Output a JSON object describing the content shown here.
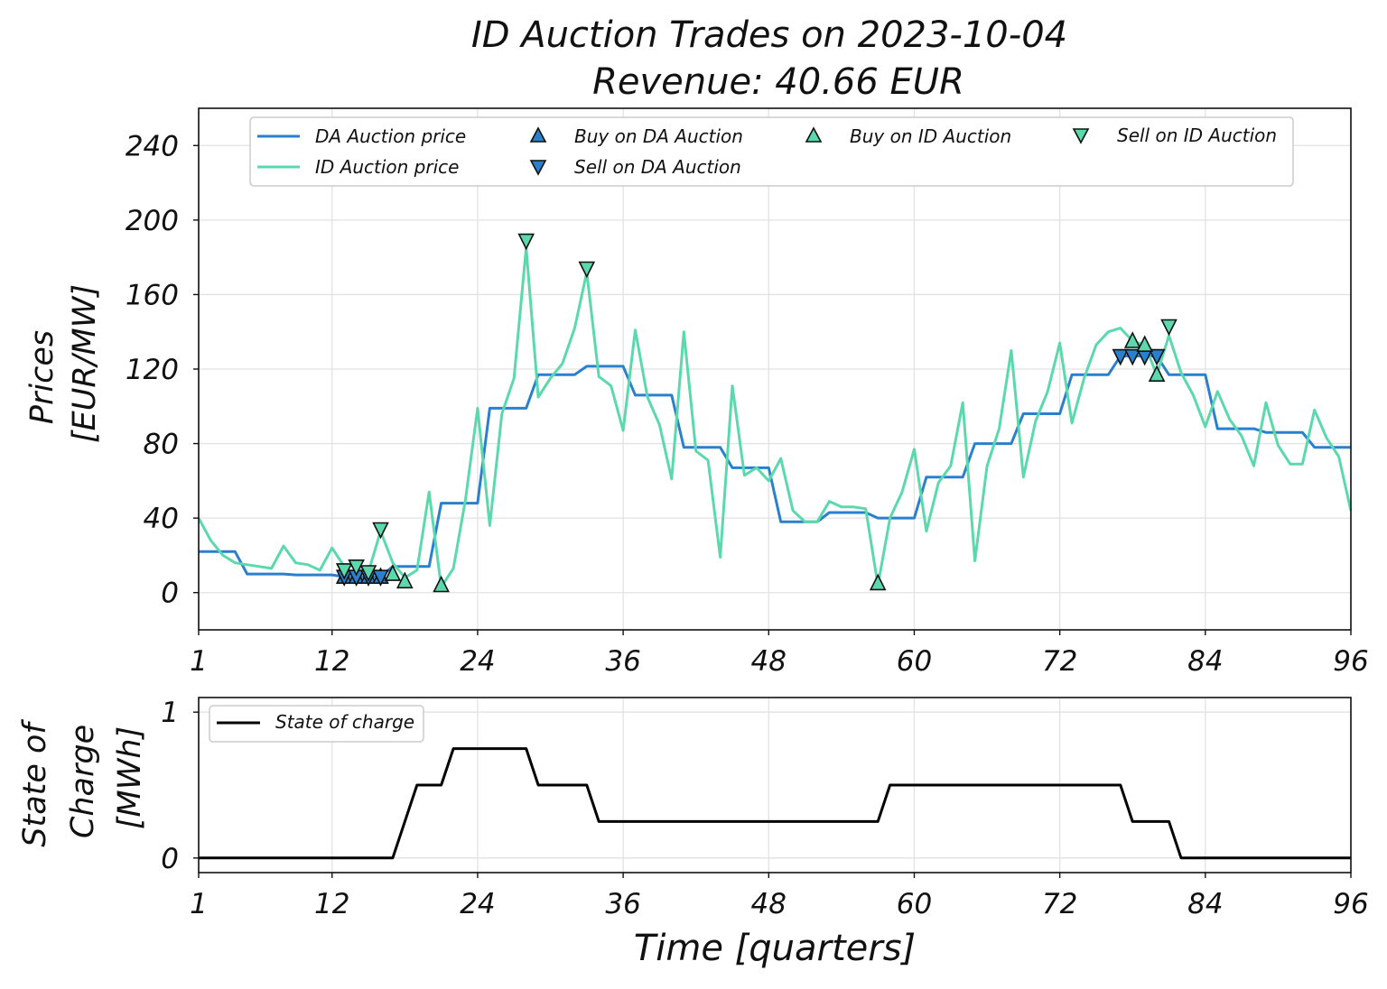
{
  "title_line1": "ID Auction Trades on 2023-10-04",
  "title_line2": "Revenue: 40.66 EUR",
  "colors": {
    "da": "#2a80cc",
    "id": "#5bd9ad",
    "soc": "#000000"
  },
  "chart_data": [
    {
      "type": "line",
      "ylabel_line1": "Prices",
      "ylabel_line2": "[EUR/MW]",
      "xlim": [
        1,
        96
      ],
      "ylim": [
        -20,
        260
      ],
      "xticks": [
        1,
        12,
        24,
        36,
        48,
        60,
        72,
        84,
        96
      ],
      "yticks": [
        0,
        40,
        80,
        120,
        160,
        200,
        240
      ],
      "grid": true,
      "legend_position": "top",
      "series": [
        {
          "name": "DA Auction price",
          "style": "step",
          "x": [
            1,
            4,
            5,
            8,
            9,
            12,
            13,
            16,
            17,
            20,
            21,
            24,
            25,
            28,
            29,
            32,
            33,
            36,
            37,
            40,
            41,
            44,
            45,
            48,
            49,
            52,
            53,
            56,
            57,
            60,
            61,
            64,
            65,
            68,
            69,
            72,
            73,
            76,
            77,
            80,
            81,
            84,
            85,
            88,
            89,
            92,
            93,
            96
          ],
          "y": [
            22,
            22,
            10,
            10,
            9.5,
            9.5,
            8.5,
            8.5,
            14,
            14,
            48,
            48,
            99,
            99,
            117,
            117,
            121.5,
            121.5,
            106,
            106,
            78,
            78,
            67,
            67,
            38,
            38,
            43,
            43,
            40,
            40,
            62,
            62,
            80,
            80,
            96,
            96,
            117,
            117,
            127,
            127,
            117,
            117,
            88,
            88,
            86,
            86,
            78,
            78
          ]
        },
        {
          "name": "ID Auction price",
          "x": [
            1,
            2,
            3,
            4,
            5,
            6,
            7,
            8,
            9,
            10,
            11,
            12,
            13,
            14,
            15,
            16,
            17,
            18,
            19,
            20,
            21,
            22,
            23,
            24,
            25,
            26,
            27,
            28,
            29,
            30,
            31,
            32,
            33,
            34,
            35,
            36,
            37,
            38,
            39,
            40,
            41,
            42,
            43,
            44,
            45,
            46,
            47,
            48,
            49,
            50,
            51,
            52,
            53,
            54,
            55,
            56,
            57,
            58,
            59,
            60,
            61,
            62,
            63,
            64,
            65,
            66,
            67,
            68,
            69,
            70,
            71,
            72,
            73,
            74,
            75,
            76,
            77,
            78,
            79,
            80,
            81,
            82,
            83,
            84,
            85,
            86,
            87,
            88,
            89,
            90,
            91,
            92,
            93,
            94,
            95,
            96
          ],
          "y": [
            40,
            28,
            20,
            16,
            15,
            14,
            13,
            25,
            16,
            15,
            12,
            24,
            14,
            15,
            11,
            33,
            16,
            8,
            12,
            54,
            3,
            13,
            50,
            99,
            36,
            96,
            115,
            185,
            105,
            115,
            123,
            142,
            172,
            116,
            111,
            87,
            141,
            105,
            90,
            61,
            140,
            76,
            71,
            19,
            111,
            63,
            67,
            60,
            72,
            44,
            38,
            38,
            49,
            46,
            46,
            45,
            4,
            40,
            54,
            77,
            33,
            59,
            68,
            102,
            17,
            68,
            88,
            130,
            62,
            92,
            108,
            134,
            91,
            115,
            133,
            140,
            142,
            135,
            133,
            117,
            138,
            118,
            106,
            89,
            108,
            93,
            84,
            68,
            102,
            79,
            69,
            69,
            98,
            83,
            73,
            44
          ]
        },
        {
          "name": "Buy on DA Auction",
          "marker": "triangle-up",
          "x": [
            13,
            14,
            15,
            16
          ],
          "y": [
            8.5,
            8.5,
            8.5,
            8.5
          ]
        },
        {
          "name": "Sell on DA Auction",
          "marker": "triangle-down",
          "x": [
            13,
            14,
            15,
            16,
            77,
            78,
            79,
            80
          ],
          "y": [
            8.5,
            8.5,
            8.5,
            8.5,
            127,
            127,
            127,
            127
          ]
        },
        {
          "name": "Buy on ID Auction",
          "marker": "triangle-up",
          "x": [
            17,
            18,
            21,
            57,
            78,
            79,
            80
          ],
          "y": [
            10,
            6,
            4,
            5,
            135,
            133,
            117
          ]
        },
        {
          "name": "Sell on ID Auction",
          "marker": "triangle-down",
          "x": [
            13,
            14,
            15,
            16,
            28,
            33,
            81
          ],
          "y": [
            12,
            14,
            11,
            34,
            189,
            174,
            143
          ]
        }
      ]
    },
    {
      "type": "line",
      "xlabel": "Time [quarters]",
      "ylabel_line1": "State of",
      "ylabel_line2": "Charge",
      "ylabel_line3": "[MWh]",
      "xlim": [
        1,
        96
      ],
      "ylim": [
        -0.1,
        1.1
      ],
      "xticks": [
        1,
        12,
        24,
        36,
        48,
        60,
        72,
        84,
        96
      ],
      "yticks": [
        0,
        1
      ],
      "grid": true,
      "legend_position": "top-left",
      "series": [
        {
          "name": "State of charge",
          "x": [
            1,
            17,
            19,
            21,
            22,
            28,
            29,
            33,
            34,
            57,
            58,
            77,
            78,
            81,
            82,
            96
          ],
          "y": [
            0,
            0,
            0.5,
            0.5,
            0.75,
            0.75,
            0.5,
            0.5,
            0.25,
            0.25,
            0.5,
            0.5,
            0.25,
            0.25,
            0,
            0
          ]
        }
      ]
    }
  ]
}
